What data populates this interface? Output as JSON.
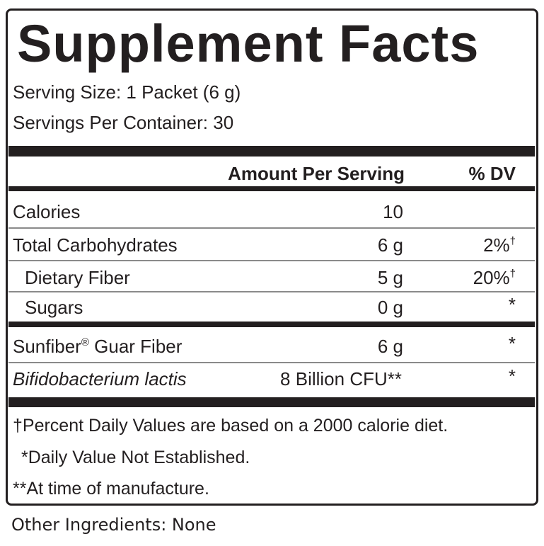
{
  "title": "Supplement Facts",
  "serving_size": "Serving Size: 1 Packet (6 g)",
  "servings_per_container": "Servings Per Container: 30",
  "header": {
    "amount": "Amount Per Serving",
    "dv": "% DV"
  },
  "rows": [
    {
      "name": "Calories",
      "amount": "10"
    },
    {
      "name": "Total Carbohydrates",
      "amount": "6 g",
      "dv": "2%",
      "dv_mark": "†"
    },
    {
      "name": "Dietary Fiber",
      "amount": "5 g",
      "dv": "20%",
      "dv_mark": "†"
    },
    {
      "name": "Sugars",
      "amount": "0 g",
      "dv": "*"
    },
    {
      "name": "Sunfiber",
      "name_mark": "®",
      "name_rest": " Guar Fiber",
      "amount": "6 g",
      "dv": "*"
    },
    {
      "name": "Bifidobacterium lactis",
      "amount": "8 Billion CFU**",
      "dv": "*"
    }
  ],
  "footnotes": [
    "†Percent Daily Values are based on a 2000 calorie diet.",
    "*Daily Value Not Established.",
    "**At time of manufacture."
  ],
  "other_ingredients": "Other Ingredients: None"
}
